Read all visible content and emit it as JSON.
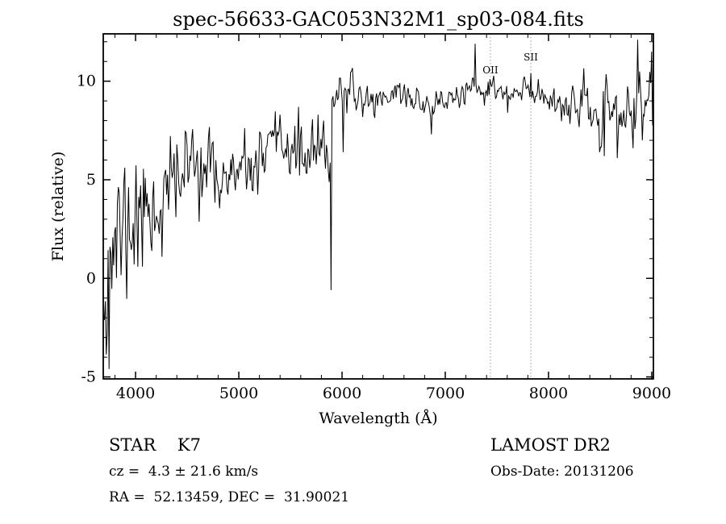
{
  "chart_data": {
    "type": "line",
    "title": "spec-56633-GAC053N32M1_sp03-084.fits",
    "xlabel": "Wavelength (Å)",
    "ylabel": "Flux (relative)",
    "xlim": [
      3687,
      9016
    ],
    "ylim": [
      -5.1,
      12.4
    ],
    "xticks": [
      4000,
      5000,
      6000,
      7000,
      8000,
      9000
    ],
    "x_minor_step": 200,
    "yticks": [
      -5,
      0,
      5,
      10
    ],
    "y_minor_step": 1,
    "line_color": "#000000",
    "marker_line_color": "#999999",
    "sample_step": 9,
    "seed": 11,
    "marker_lines": [
      {
        "label": "OII",
        "x": 7437,
        "label_flux": 10.4
      },
      {
        "label": "SII",
        "x": 7828,
        "label_flux": 11.05
      }
    ],
    "continuum": [
      [
        3687,
        0.3
      ],
      [
        3720,
        0.8
      ],
      [
        3760,
        1.4
      ],
      [
        3800,
        1.8
      ],
      [
        3850,
        2.1
      ],
      [
        3900,
        2.5
      ],
      [
        3950,
        2.7
      ],
      [
        4000,
        3.0
      ],
      [
        4050,
        3.3
      ],
      [
        4100,
        3.5
      ],
      [
        4150,
        3.7
      ],
      [
        4200,
        3.6
      ],
      [
        4250,
        3.8
      ],
      [
        4300,
        4.2
      ],
      [
        4350,
        4.6
      ],
      [
        4400,
        5.0
      ],
      [
        4450,
        5.3
      ],
      [
        4500,
        5.6
      ],
      [
        4550,
        5.9
      ],
      [
        4600,
        6.0
      ],
      [
        4650,
        5.8
      ],
      [
        4700,
        5.5
      ],
      [
        4750,
        5.3
      ],
      [
        4800,
        5.2
      ],
      [
        4850,
        5.1
      ],
      [
        4900,
        5.0
      ],
      [
        4950,
        5.1
      ],
      [
        5000,
        5.2
      ],
      [
        5050,
        5.3
      ],
      [
        5100,
        5.4
      ],
      [
        5150,
        5.6
      ],
      [
        5200,
        5.8
      ],
      [
        5250,
        6.0
      ],
      [
        5300,
        6.2
      ],
      [
        5350,
        6.5
      ],
      [
        5400,
        6.8
      ],
      [
        5450,
        7.0
      ],
      [
        5500,
        6.6
      ],
      [
        5550,
        6.2
      ],
      [
        5600,
        6.1
      ],
      [
        5650,
        6.2
      ],
      [
        5700,
        6.3
      ],
      [
        5750,
        6.3
      ],
      [
        5800,
        6.2
      ],
      [
        5850,
        6.1
      ],
      [
        5888,
        5.9
      ],
      [
        5908,
        9.4
      ],
      [
        5960,
        9.6
      ],
      [
        6050,
        9.4
      ],
      [
        6150,
        9.2
      ],
      [
        6250,
        9.0
      ],
      [
        6350,
        9.1
      ],
      [
        6450,
        9.3
      ],
      [
        6550,
        9.5
      ],
      [
        6650,
        9.2
      ],
      [
        6750,
        8.9
      ],
      [
        6850,
        8.8
      ],
      [
        6950,
        8.9
      ],
      [
        7050,
        9.1
      ],
      [
        7150,
        9.3
      ],
      [
        7250,
        9.4
      ],
      [
        7350,
        9.5
      ],
      [
        7450,
        9.6
      ],
      [
        7550,
        9.4
      ],
      [
        7650,
        9.2
      ],
      [
        7750,
        9.4
      ],
      [
        7850,
        9.5
      ],
      [
        7950,
        9.3
      ],
      [
        8050,
        9.1
      ],
      [
        8150,
        8.9
      ],
      [
        8250,
        8.7
      ],
      [
        8350,
        8.5
      ],
      [
        8450,
        8.3
      ],
      [
        8550,
        8.2
      ],
      [
        8650,
        8.3
      ],
      [
        8750,
        8.5
      ],
      [
        8850,
        8.7
      ],
      [
        8950,
        8.9
      ],
      [
        9016,
        9.2
      ]
    ],
    "noise_sigma": [
      [
        3687,
        2.1
      ],
      [
        3800,
        2.0
      ],
      [
        3950,
        1.8
      ],
      [
        4100,
        1.5
      ],
      [
        4300,
        1.35
      ],
      [
        4500,
        1.05
      ],
      [
        4800,
        0.85
      ],
      [
        5100,
        0.8
      ],
      [
        5400,
        0.7
      ],
      [
        5700,
        0.7
      ],
      [
        5880,
        0.6
      ],
      [
        5915,
        0.5
      ],
      [
        6100,
        0.42
      ],
      [
        6400,
        0.38
      ],
      [
        6800,
        0.35
      ],
      [
        7200,
        0.33
      ],
      [
        7600,
        0.35
      ],
      [
        8000,
        0.4
      ],
      [
        8300,
        0.55
      ],
      [
        8600,
        0.75
      ],
      [
        8900,
        0.85
      ],
      [
        9016,
        0.9
      ]
    ],
    "spikes": [
      [
        3745,
        -4.6
      ],
      [
        5577,
        8.7
      ],
      [
        5770,
        8.3
      ],
      [
        5820,
        8.0
      ],
      [
        5896,
        -0.6
      ],
      [
        6010,
        6.4
      ],
      [
        6870,
        7.3
      ],
      [
        7290,
        11.9
      ],
      [
        7437,
        10.1
      ],
      [
        7605,
        8.4
      ],
      [
        7830,
        10.4
      ],
      [
        8498,
        6.4
      ],
      [
        8542,
        6.2
      ],
      [
        8662,
        6.1
      ],
      [
        8820,
        6.6
      ],
      [
        8865,
        12.1
      ],
      [
        8905,
        7.0
      ],
      [
        8995,
        11.5
      ]
    ]
  },
  "annotations": {
    "class_line": "STAR    K7",
    "cz_line": "cz =  4.3 ± 21.6 km/s",
    "radec_line": "RA =  52.13459, DEC =  31.90021",
    "survey": "LAMOST DR2",
    "obsdate": "Obs-Date: 20131206"
  }
}
